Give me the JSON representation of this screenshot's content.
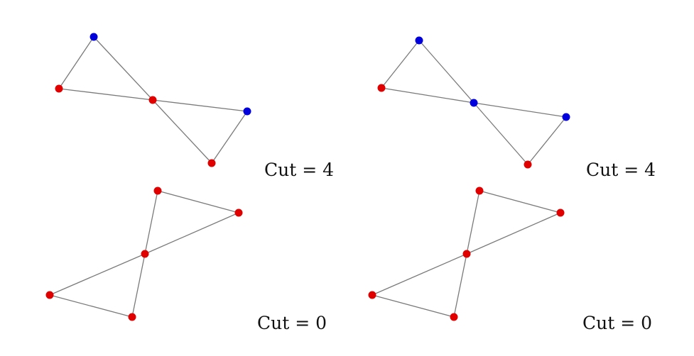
{
  "colors": {
    "red": "#e00000",
    "blue": "#0000dd",
    "edge": "#7a7a7a"
  },
  "panels": [
    {
      "id": "top-left",
      "label": "Cut = 4",
      "nodes": [
        {
          "id": "a",
          "color": "blue"
        },
        {
          "id": "b",
          "color": "red"
        },
        {
          "id": "c",
          "color": "red"
        },
        {
          "id": "d",
          "color": "blue"
        },
        {
          "id": "e",
          "color": "red"
        }
      ],
      "edges": [
        [
          "a",
          "b"
        ],
        [
          "a",
          "c"
        ],
        [
          "b",
          "c"
        ],
        [
          "c",
          "d"
        ],
        [
          "c",
          "e"
        ],
        [
          "d",
          "e"
        ]
      ]
    },
    {
      "id": "top-right",
      "label": "Cut = 4",
      "nodes": [
        {
          "id": "a",
          "color": "blue"
        },
        {
          "id": "b",
          "color": "red"
        },
        {
          "id": "c",
          "color": "blue"
        },
        {
          "id": "d",
          "color": "blue"
        },
        {
          "id": "e",
          "color": "red"
        }
      ],
      "edges": [
        [
          "a",
          "b"
        ],
        [
          "a",
          "c"
        ],
        [
          "b",
          "c"
        ],
        [
          "c",
          "d"
        ],
        [
          "c",
          "e"
        ],
        [
          "d",
          "e"
        ]
      ]
    },
    {
      "id": "bottom-left",
      "label": "Cut = 0",
      "nodes": [
        {
          "id": "a",
          "color": "red"
        },
        {
          "id": "b",
          "color": "red"
        },
        {
          "id": "c",
          "color": "red"
        },
        {
          "id": "d",
          "color": "red"
        },
        {
          "id": "e",
          "color": "red"
        }
      ],
      "edges": [
        [
          "a",
          "b"
        ],
        [
          "a",
          "c"
        ],
        [
          "b",
          "c"
        ],
        [
          "c",
          "d"
        ],
        [
          "c",
          "e"
        ],
        [
          "d",
          "e"
        ]
      ]
    },
    {
      "id": "bottom-right",
      "label": "Cut = 0",
      "nodes": [
        {
          "id": "a",
          "color": "red"
        },
        {
          "id": "b",
          "color": "red"
        },
        {
          "id": "c",
          "color": "red"
        },
        {
          "id": "d",
          "color": "red"
        },
        {
          "id": "e",
          "color": "red"
        }
      ],
      "edges": [
        [
          "a",
          "b"
        ],
        [
          "a",
          "c"
        ],
        [
          "b",
          "c"
        ],
        [
          "c",
          "d"
        ],
        [
          "c",
          "e"
        ],
        [
          "d",
          "e"
        ]
      ]
    }
  ]
}
